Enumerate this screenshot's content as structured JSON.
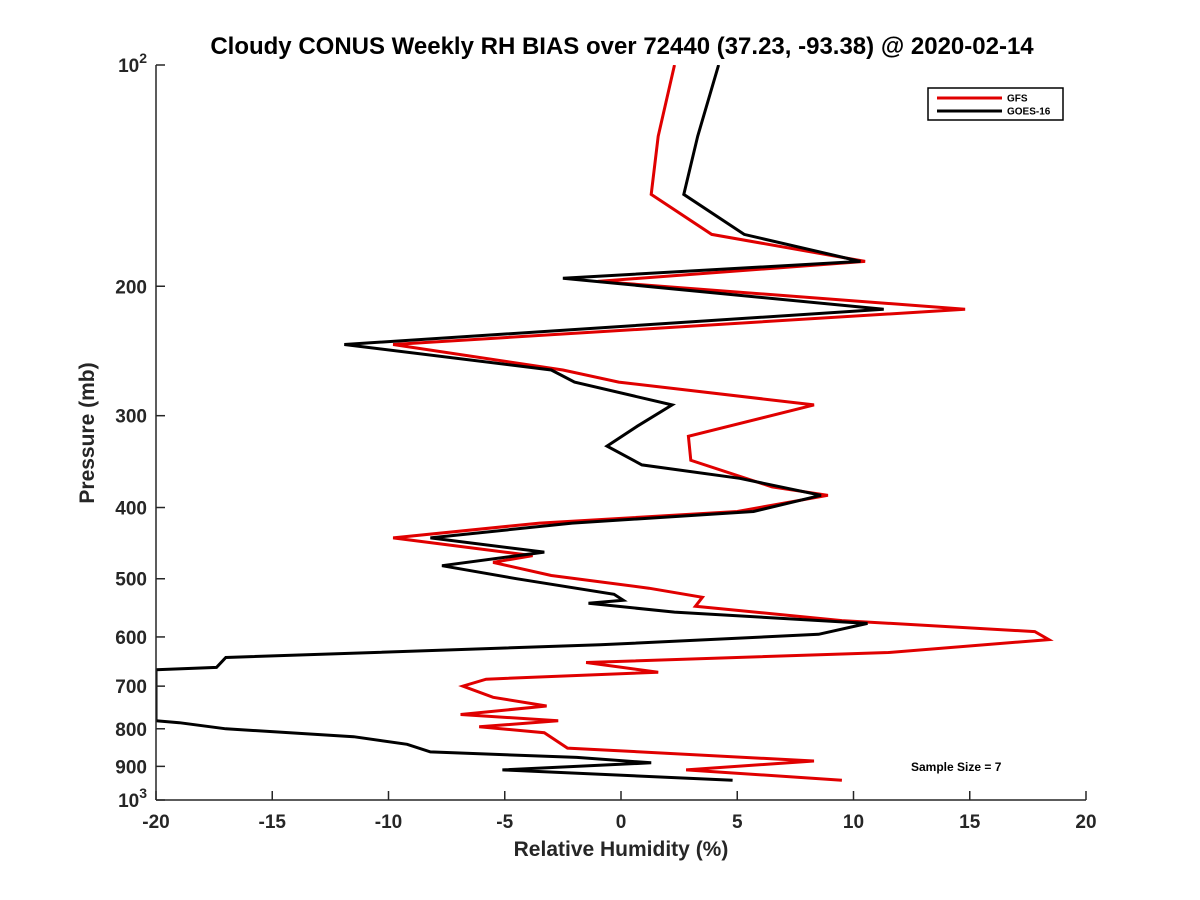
{
  "chart_data": {
    "type": "line",
    "title": "Cloudy CONUS Weekly RH BIAS over 72440 (37.23, -93.38) @ 2020-02-14",
    "xlabel": "Relative Humidity (%)",
    "ylabel": "Pressure (mb)",
    "xlim": [
      -20,
      20
    ],
    "ylim": [
      100,
      1000
    ],
    "yscale": "log",
    "y_reversed": true,
    "grid": false,
    "legend_position": "top-right",
    "annotation": "Sample Size = 7",
    "x_ticks": [
      "-20",
      "-15",
      "-10",
      "-5",
      "0",
      "5",
      "10",
      "15",
      "20"
    ],
    "x_tick_values": [
      -20,
      -15,
      -10,
      -5,
      0,
      5,
      10,
      15,
      20
    ],
    "y_ticks": [
      {
        "value": 100,
        "base": "10",
        "exp": "2"
      },
      {
        "value": 200,
        "label": "200"
      },
      {
        "value": 300,
        "label": "300"
      },
      {
        "value": 400,
        "label": "400"
      },
      {
        "value": 500,
        "label": "500"
      },
      {
        "value": 600,
        "label": "600"
      },
      {
        "value": 700,
        "label": "700"
      },
      {
        "value": 800,
        "label": "800"
      },
      {
        "value": 900,
        "label": "900"
      },
      {
        "value": 1000,
        "base": "10",
        "exp": "3"
      }
    ],
    "series": [
      {
        "name": "GFS",
        "color": "#e00000",
        "points": [
          [
            2.3,
            100
          ],
          [
            1.6,
            125
          ],
          [
            1.3,
            150
          ],
          [
            3.9,
            170
          ],
          [
            10.5,
            185
          ],
          [
            -1.0,
            197
          ],
          [
            14.8,
            215
          ],
          [
            -9.8,
            240
          ],
          [
            -2.5,
            260
          ],
          [
            -0.1,
            270
          ],
          [
            8.3,
            290
          ],
          [
            2.9,
            320
          ],
          [
            3.0,
            345
          ],
          [
            6.5,
            375
          ],
          [
            8.9,
            385
          ],
          [
            5.0,
            405
          ],
          [
            -3.5,
            420
          ],
          [
            -9.8,
            440
          ],
          [
            -5.0,
            460
          ],
          [
            -3.8,
            465
          ],
          [
            -5.5,
            475
          ],
          [
            -3.0,
            495
          ],
          [
            1.2,
            515
          ],
          [
            3.5,
            530
          ],
          [
            3.2,
            545
          ],
          [
            9.5,
            570
          ],
          [
            17.8,
            590
          ],
          [
            18.4,
            605
          ],
          [
            11.5,
            630
          ],
          [
            -1.5,
            650
          ],
          [
            1.6,
            670
          ],
          [
            -5.8,
            685
          ],
          [
            -6.8,
            700
          ],
          [
            -5.5,
            725
          ],
          [
            -3.2,
            745
          ],
          [
            -6.9,
            765
          ],
          [
            -2.7,
            780
          ],
          [
            -6.1,
            795
          ],
          [
            -3.3,
            810
          ],
          [
            -2.3,
            850
          ],
          [
            8.3,
            885
          ],
          [
            2.8,
            910
          ],
          [
            9.5,
            940
          ]
        ]
      },
      {
        "name": "GOES-16",
        "color": "#000000",
        "points": [
          [
            4.2,
            100
          ],
          [
            3.3,
            125
          ],
          [
            2.7,
            150
          ],
          [
            5.3,
            170
          ],
          [
            10.3,
            185
          ],
          [
            -2.5,
            195
          ],
          [
            11.3,
            215
          ],
          [
            -11.9,
            240
          ],
          [
            -3.0,
            260
          ],
          [
            -2.0,
            270
          ],
          [
            2.2,
            290
          ],
          [
            0.7,
            310
          ],
          [
            -0.6,
            330
          ],
          [
            0.9,
            350
          ],
          [
            5.1,
            365
          ],
          [
            8.6,
            385
          ],
          [
            5.7,
            405
          ],
          [
            -2.1,
            420
          ],
          [
            -8.2,
            440
          ],
          [
            -3.3,
            460
          ],
          [
            -7.7,
            480
          ],
          [
            -4.5,
            500
          ],
          [
            -0.3,
            525
          ],
          [
            0.1,
            535
          ],
          [
            -1.4,
            540
          ],
          [
            2.3,
            555
          ],
          [
            10.6,
            575
          ],
          [
            8.5,
            595
          ],
          [
            -0.9,
            615
          ],
          [
            -17.0,
            640
          ],
          [
            -17.4,
            660
          ],
          [
            -20.0,
            665
          ],
          [
            -20.0,
            780
          ],
          [
            -19.0,
            785
          ],
          [
            -17.0,
            800
          ],
          [
            -11.5,
            820
          ],
          [
            -9.2,
            840
          ],
          [
            -8.2,
            860
          ],
          [
            -1.9,
            875
          ],
          [
            1.3,
            890
          ],
          [
            -5.1,
            910
          ],
          [
            4.8,
            940
          ]
        ]
      }
    ]
  }
}
